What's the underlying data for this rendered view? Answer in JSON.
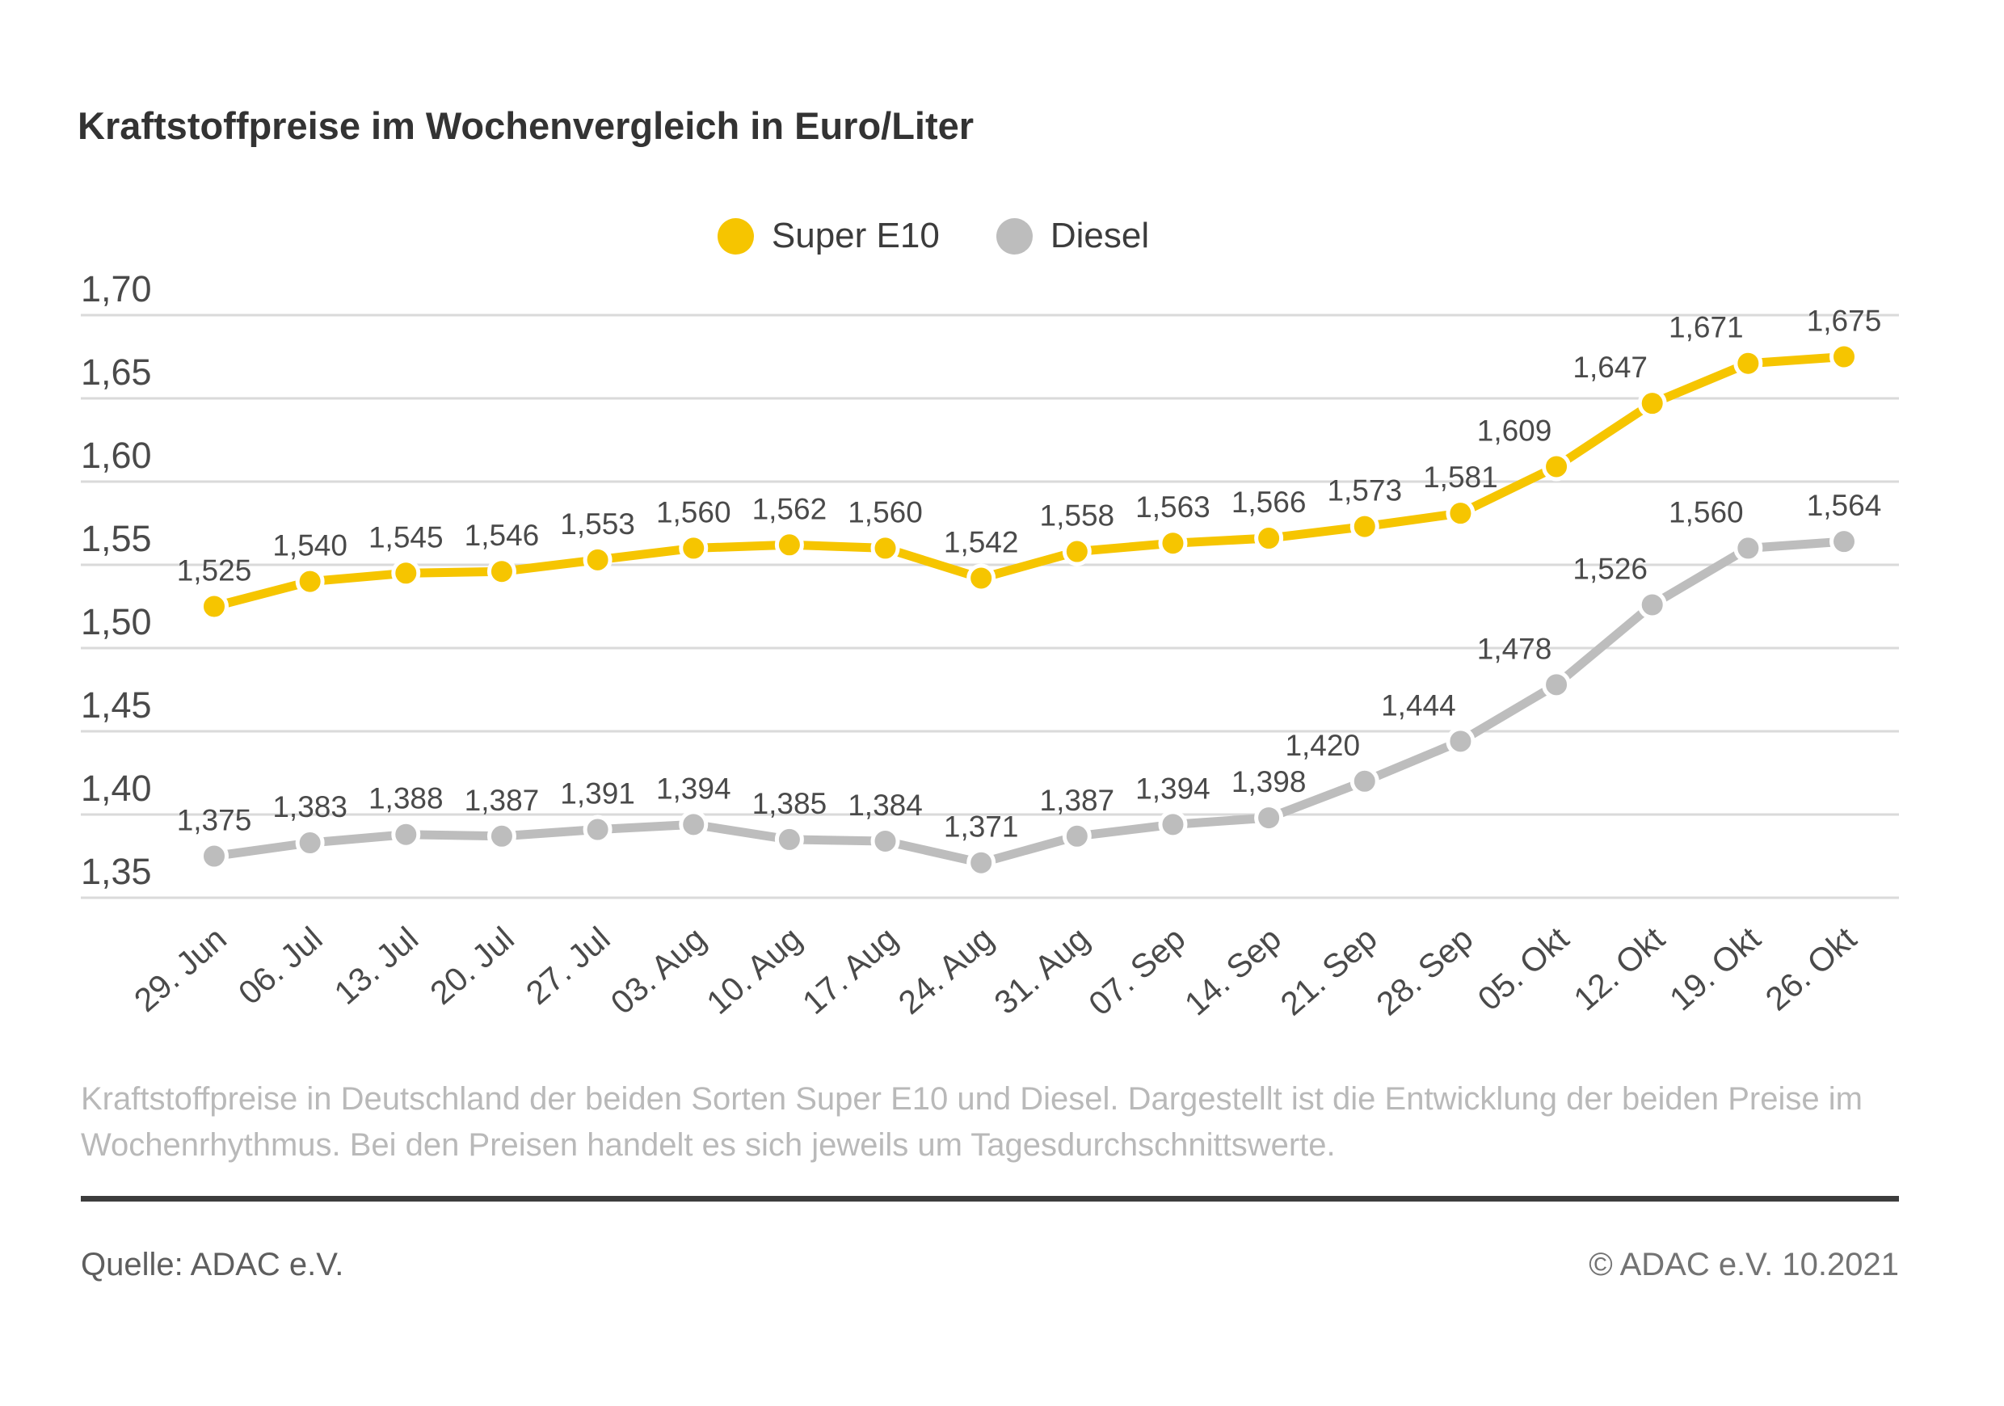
{
  "page": {
    "title": "Kraftstoffpreise im Wochenvergleich in Euro/Liter",
    "description_lines": [
      "Kraftstoffpreise in Deutschland der beiden Sorten Super E10 und Diesel. Dargestellt ist die Entwicklung der beiden Preise im",
      "Wochenrhythmus. Bei den Preisen handelt es sich jeweils um Tagesdurchschnittswerte."
    ],
    "source": "Quelle: ADAC e.V.",
    "copyright": "© ADAC e.V. 10.2021"
  },
  "colors": {
    "super_e10": "#F6C500",
    "diesel": "#BDBDBD",
    "grid": "#DADADA",
    "label": "#4A4A4A"
  },
  "chart_data": {
    "type": "line",
    "title": "Kraftstoffpreise im Wochenvergleich in Euro/Liter",
    "unit": "Euro/Liter",
    "grid": true,
    "legend_position": "top-center",
    "decimal_separator": ",",
    "categories": [
      "29. Jun",
      "06. Jul",
      "13. Jul",
      "20. Jul",
      "27. Jul",
      "03. Aug",
      "10. Aug",
      "17. Aug",
      "24. Aug",
      "31. Aug",
      "07. Sep",
      "14. Sep",
      "21. Sep",
      "28. Sep",
      "05. Okt",
      "12. Okt",
      "19. Okt",
      "26. Okt"
    ],
    "series": [
      {
        "name": "Super E10",
        "color_key": "super_e10",
        "values": [
          1.525,
          1.54,
          1.545,
          1.546,
          1.553,
          1.56,
          1.562,
          1.56,
          1.542,
          1.558,
          1.563,
          1.566,
          1.573,
          1.581,
          1.609,
          1.647,
          1.671,
          1.675
        ]
      },
      {
        "name": "Diesel",
        "color_key": "diesel",
        "values": [
          1.375,
          1.383,
          1.388,
          1.387,
          1.391,
          1.394,
          1.385,
          1.384,
          1.371,
          1.387,
          1.394,
          1.398,
          1.42,
          1.444,
          1.478,
          1.526,
          1.56,
          1.564
        ]
      }
    ],
    "yticks": [
      1.7,
      1.65,
      1.6,
      1.55,
      1.5,
      1.45,
      1.4,
      1.35
    ],
    "ylim": [
      1.35,
      1.7
    ]
  }
}
